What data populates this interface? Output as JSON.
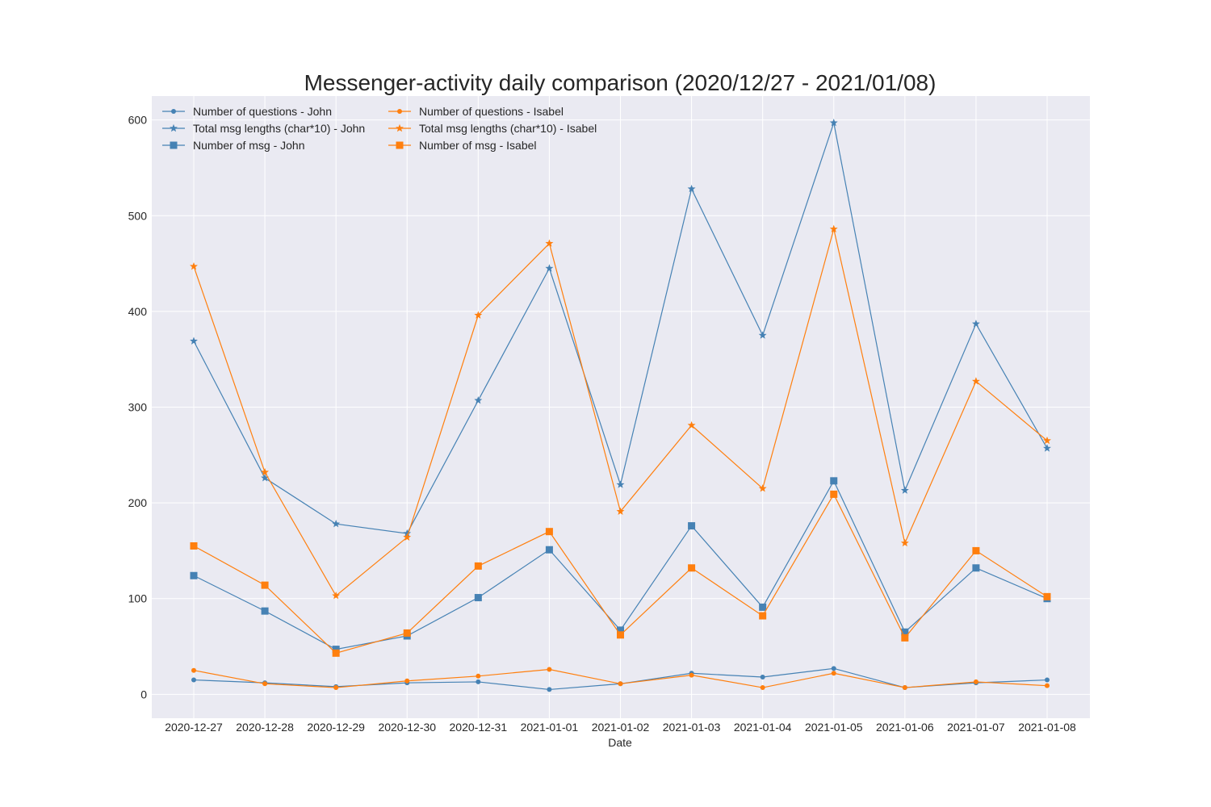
{
  "chart_data": {
    "type": "line",
    "title": "Messenger-activity daily comparison (2020/12/27 - 2021/01/08)",
    "xlabel": "Date",
    "ylabel": "",
    "categories": [
      "2020-12-27",
      "2020-12-28",
      "2020-12-29",
      "2020-12-30",
      "2020-12-31",
      "2021-01-01",
      "2021-01-02",
      "2021-01-03",
      "2021-01-04",
      "2021-01-05",
      "2021-01-06",
      "2021-01-07",
      "2021-01-08"
    ],
    "ylim": [
      -25,
      625
    ],
    "yticks": [
      0,
      100,
      200,
      300,
      400,
      500,
      600
    ],
    "grid": true,
    "legend_position": "top-left",
    "colors": {
      "john": "#4682b4",
      "isabel": "#ff7f0e",
      "plot_bg": "#eaeaf2",
      "grid": "#ffffff"
    },
    "series": [
      {
        "name": "Number of questions - John",
        "marker": "dot",
        "color": "#4682b4",
        "values": [
          15,
          12,
          8,
          12,
          13,
          5,
          11,
          22,
          18,
          27,
          7,
          12,
          15
        ]
      },
      {
        "name": "Total msg lengths (char*10) - John",
        "marker": "star",
        "color": "#4682b4",
        "values": [
          369,
          226,
          178,
          168,
          307,
          445,
          219,
          528,
          375,
          597,
          213,
          387,
          257
        ]
      },
      {
        "name": "Number of msg - John",
        "marker": "square",
        "color": "#4682b4",
        "values": [
          124,
          87,
          47,
          61,
          101,
          151,
          67,
          176,
          91,
          223,
          65,
          132,
          100
        ]
      },
      {
        "name": "Number of questions - Isabel",
        "marker": "dot",
        "color": "#ff7f0e",
        "values": [
          25,
          11,
          7,
          14,
          19,
          26,
          11,
          20,
          7,
          22,
          7,
          13,
          9
        ]
      },
      {
        "name": "Total msg lengths (char*10) - Isabel",
        "marker": "star",
        "color": "#ff7f0e",
        "values": [
          447,
          232,
          103,
          164,
          396,
          471,
          191,
          281,
          215,
          486,
          158,
          327,
          265
        ]
      },
      {
        "name": "Number of msg - Isabel",
        "marker": "square",
        "color": "#ff7f0e",
        "values": [
          155,
          114,
          43,
          64,
          134,
          170,
          62,
          132,
          82,
          209,
          59,
          150,
          102
        ]
      }
    ]
  }
}
